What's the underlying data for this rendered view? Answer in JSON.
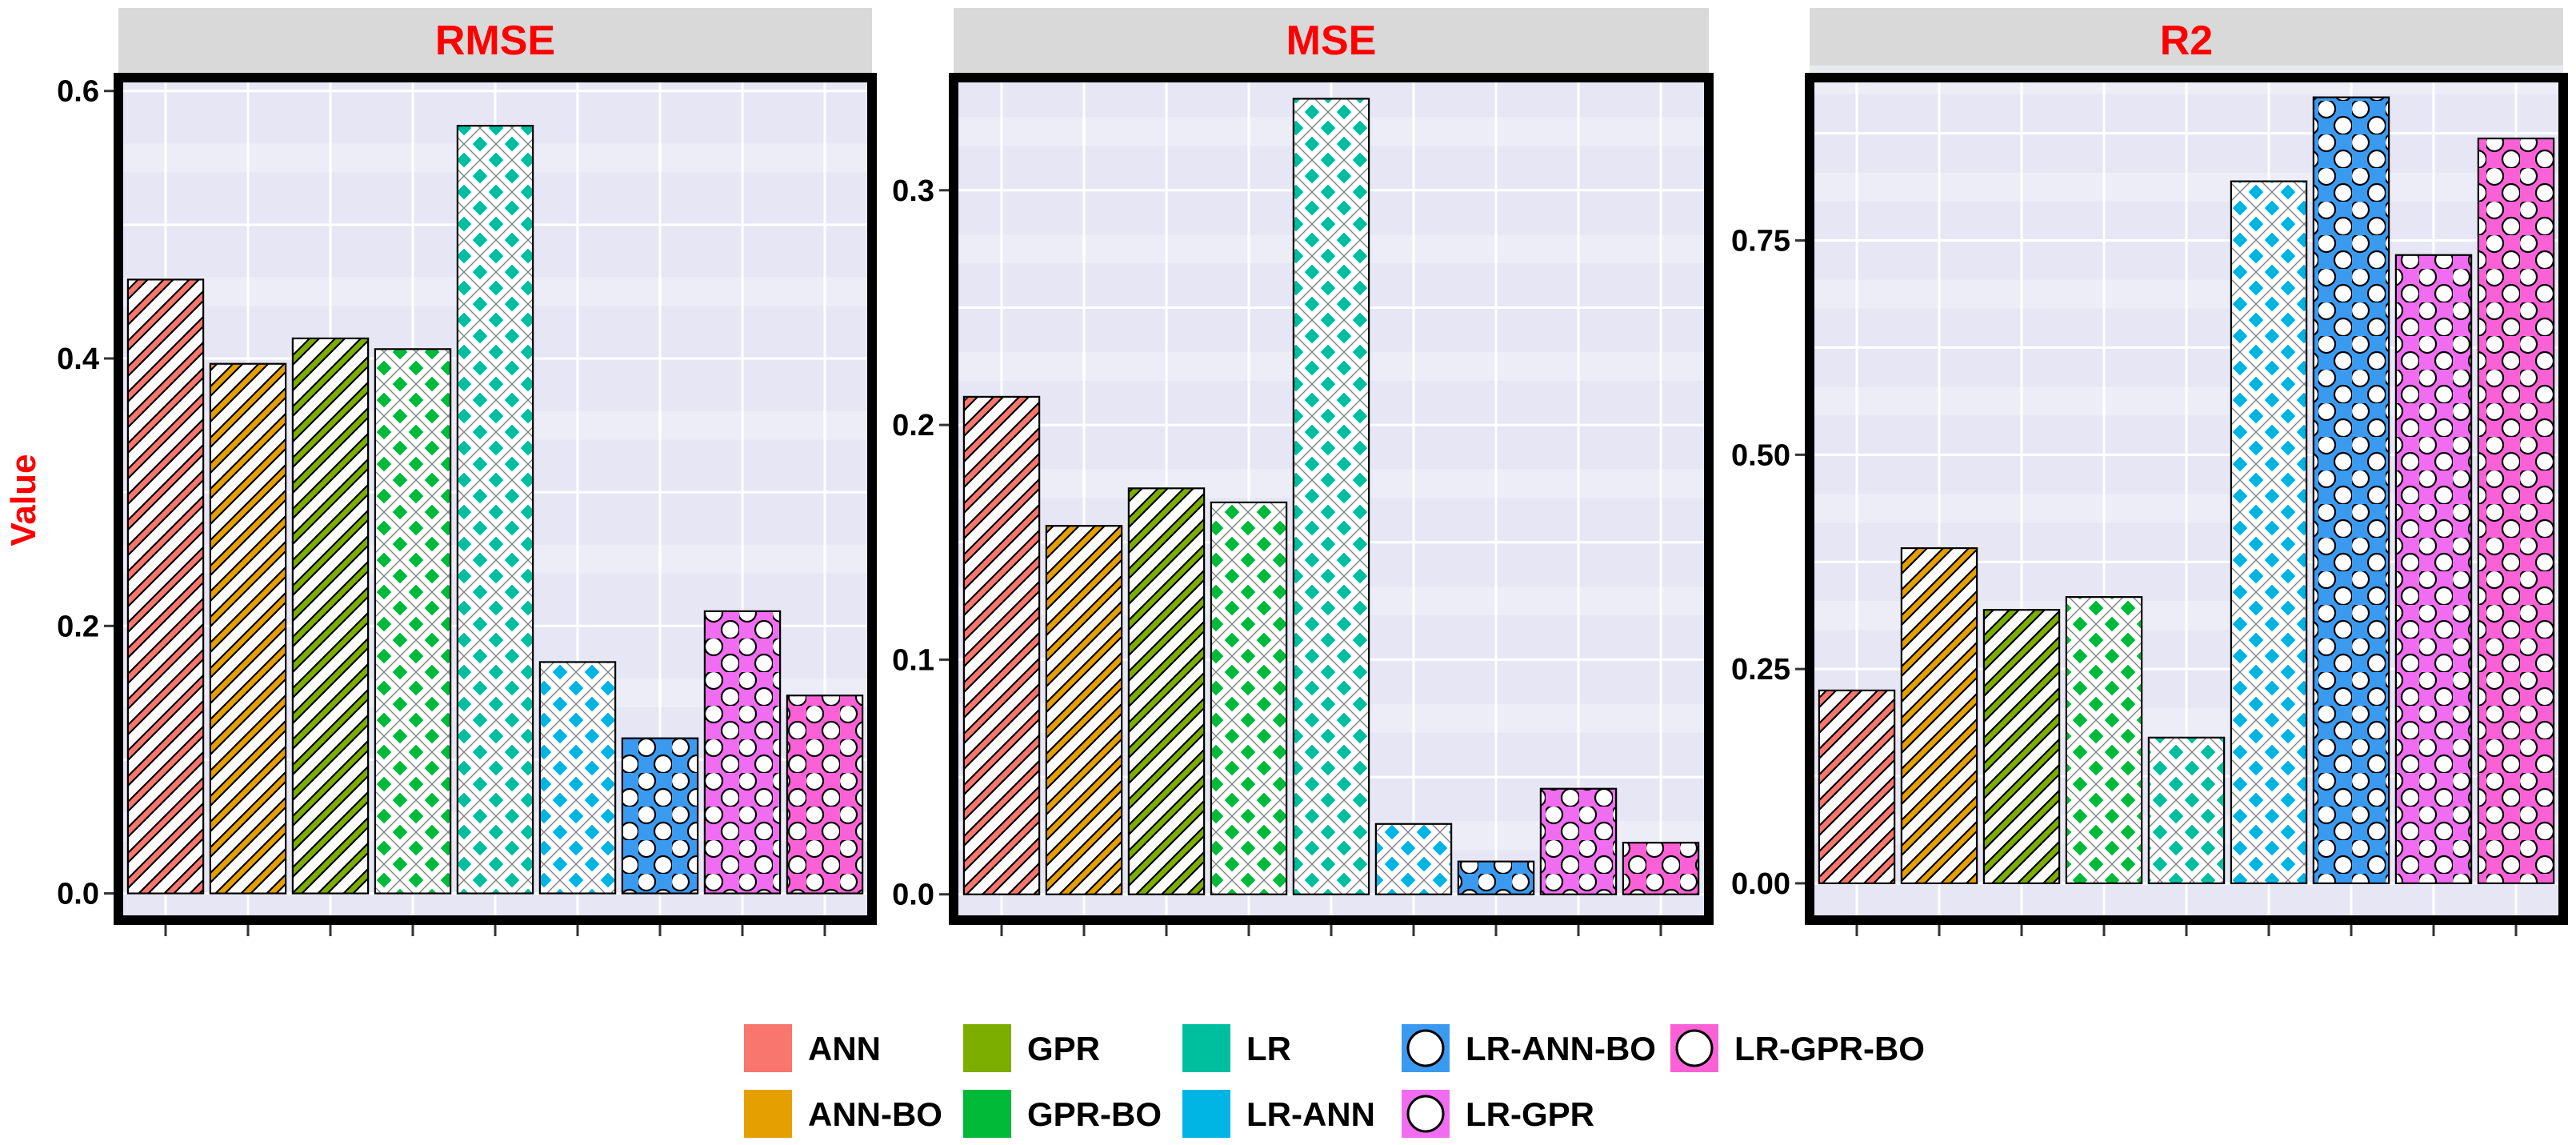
{
  "chart_data": {
    "type": "bar",
    "ylabel": "Value",
    "xlabel": "",
    "categories": [
      "ANN",
      "ANN-BO",
      "GPR",
      "GPR-BO",
      "LR",
      "LR-ANN",
      "LR-ANN-BO",
      "LR-GPR",
      "LR-GPR-BO"
    ],
    "colors": {
      "ANN": "#F8766D",
      "ANN-BO": "#E69F00",
      "GPR": "#7CAE00",
      "GPR-BO": "#00BA38",
      "LR": "#00BF9F",
      "LR-ANN": "#00B4E4",
      "LR-ANN-BO": "#3A9AF0",
      "LR-GPR": "#F06CF0",
      "LR-GPR-BO": "#FB61D7"
    },
    "patterns": {
      "ANN": "stripe",
      "ANN-BO": "stripe",
      "GPR": "stripe",
      "GPR-BO": "crosshatch",
      "LR": "crosshatch",
      "LR-ANN": "crosshatch",
      "LR-ANN-BO": "circle",
      "LR-GPR": "circle",
      "LR-GPR-BO": "circle"
    },
    "panels": [
      {
        "title": "RMSE",
        "values": [
          0.459,
          0.396,
          0.415,
          0.407,
          0.574,
          0.173,
          0.116,
          0.211,
          0.148
        ],
        "ylim": [
          -0.02,
          0.61
        ],
        "ticks": [
          0.0,
          0.2,
          0.4,
          0.6
        ],
        "tick_labels": [
          "0.0",
          "0.2",
          "0.4",
          "0.6"
        ]
      },
      {
        "title": "MSE",
        "values": [
          0.212,
          0.157,
          0.173,
          0.167,
          0.339,
          0.03,
          0.014,
          0.045,
          0.022
        ],
        "ylim": [
          -0.011,
          0.348
        ],
        "ticks": [
          0.0,
          0.1,
          0.2,
          0.3
        ],
        "tick_labels": [
          "0.0",
          "0.1",
          "0.2",
          "0.3"
        ]
      },
      {
        "title": "R2",
        "values": [
          0.225,
          0.391,
          0.319,
          0.334,
          0.17,
          0.819,
          0.917,
          0.733,
          0.869
        ],
        "ylim": [
          -0.043,
          0.94
        ],
        "ticks": [
          0.0,
          0.25,
          0.5,
          0.75
        ],
        "tick_labels": [
          "0.00",
          "0.25",
          "0.50",
          "0.75"
        ]
      }
    ],
    "legend": {
      "position": "bottom",
      "entries": [
        "ANN",
        "ANN-BO",
        "GPR",
        "GPR-BO",
        "LR",
        "LR-ANN",
        "LR-ANN-BO",
        "LR-GPR",
        "LR-GPR-BO"
      ]
    }
  }
}
